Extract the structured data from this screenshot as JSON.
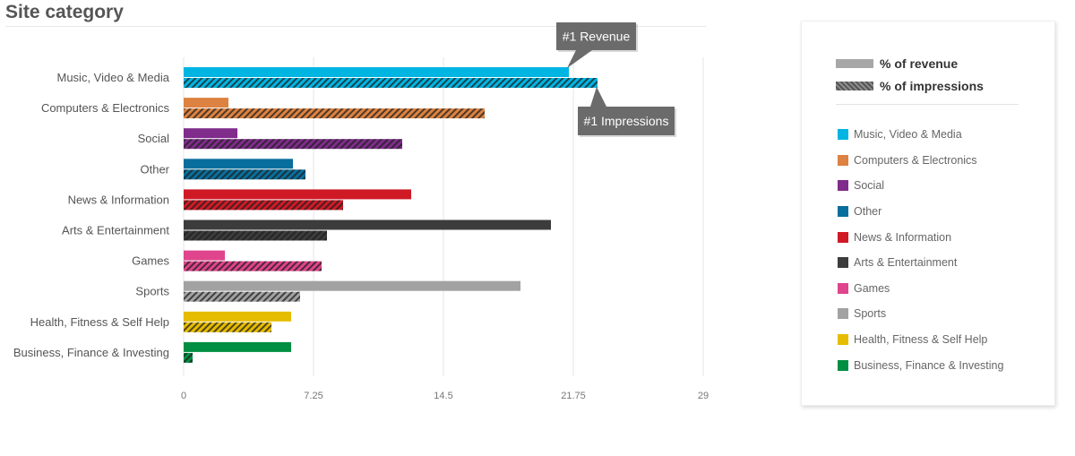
{
  "page": {
    "title": "Site category"
  },
  "legend": {
    "revenue_label": "% of revenue",
    "impressions_label": "% of impressions"
  },
  "chart_data": {
    "type": "bar",
    "orientation": "horizontal",
    "categories": [
      "Music, Video & Media",
      "Computers & Electronics",
      "Social",
      "Other",
      "News & Information",
      "Arts & Entertainment",
      "Games",
      "Sports",
      "Health, Fitness & Self Help",
      "Business, Finance & Investing"
    ],
    "colors": [
      "#00b5e2",
      "#dd8241",
      "#7f2c8b",
      "#086e9c",
      "#cf1a26",
      "#3c3c3c",
      "#e0448c",
      "#a2a2a2",
      "#e6bc00",
      "#008f42"
    ],
    "series": [
      {
        "name": "% of revenue",
        "pattern": "solid",
        "values": [
          21.5,
          2.5,
          3.0,
          6.1,
          12.7,
          20.5,
          2.3,
          18.8,
          6.0,
          6.0
        ]
      },
      {
        "name": "% of impressions",
        "pattern": "hatched",
        "values": [
          23.1,
          16.8,
          12.2,
          6.8,
          8.9,
          8.0,
          7.7,
          6.5,
          4.9,
          0.5
        ]
      }
    ],
    "xticks": [
      "0",
      "7.25",
      "14.5",
      "21.75",
      "29"
    ],
    "xlim": [
      0,
      29
    ],
    "grid": true,
    "legend_position": "right",
    "annotations": [
      {
        "text": "#1 Revenue",
        "category": "Music, Video & Media",
        "series": "% of revenue"
      },
      {
        "text": "#1 Impressions",
        "category": "Music, Video & Media",
        "series": "% of impressions"
      }
    ]
  }
}
